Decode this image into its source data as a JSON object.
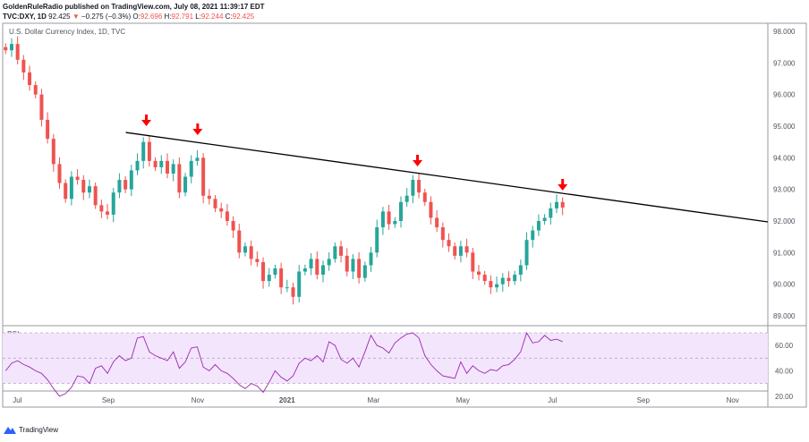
{
  "header": {
    "published": "GoldenRuleRadio published on TradingView.com, July 08, 2021 11:39:17 EDT",
    "symbol": "TVC:DXY, 1D",
    "last": "92.425",
    "change": "−0.275 (−0.3%)",
    "o_label": "O:",
    "o": "92.696",
    "h_label": "H:",
    "h": "92.791",
    "l_label": "L:",
    "l": "92.244",
    "c_label": "C:",
    "c": "92.425"
  },
  "brand": "TradingView",
  "colors": {
    "up": "#26a69a",
    "down": "#ef5350",
    "rsi": "#9c27b0",
    "rsi_band": "#f3e5fc",
    "arrow": "#ff0000",
    "trendline": "#000000"
  },
  "chart_data": [
    {
      "type": "candlestick",
      "title": "U.S. Dollar Currency Index, 1D, TVC",
      "x_range": [
        "2020-06-21",
        "2021-11-25"
      ],
      "x_ticks": [
        "Jul",
        "Sep",
        "Nov",
        "2021",
        "Mar",
        "May",
        "Jul",
        "Sep",
        "Nov"
      ],
      "y_ticks": [
        "98.000",
        "97.000",
        "96.000",
        "95.000",
        "94.000",
        "93.000",
        "92.000",
        "91.000",
        "90.000",
        "89.000"
      ],
      "ylim": [
        88.7,
        98.25
      ],
      "sample_start": "2020-06-23",
      "sample_end": "2021-07-08",
      "closes": [
        97.4,
        97.6,
        97.1,
        96.7,
        96.3,
        96.0,
        95.2,
        94.6,
        93.8,
        93.2,
        92.7,
        93.4,
        93.3,
        92.9,
        93.1,
        92.5,
        92.3,
        92.2,
        92.9,
        93.3,
        93.0,
        93.6,
        93.9,
        94.5,
        93.9,
        93.7,
        93.9,
        93.5,
        93.8,
        92.9,
        93.4,
        93.9,
        94.0,
        92.8,
        92.7,
        92.4,
        92.3,
        92.0,
        91.7,
        91.0,
        91.2,
        90.8,
        90.7,
        90.1,
        90.3,
        90.5,
        89.9,
        89.9,
        89.6,
        90.4,
        90.5,
        90.8,
        90.3,
        90.6,
        90.8,
        91.2,
        90.9,
        90.4,
        90.8,
        90.2,
        90.6,
        91.0,
        91.8,
        92.3,
        91.9,
        92.0,
        92.6,
        92.8,
        93.3,
        92.9,
        92.6,
        92.1,
        91.8,
        91.4,
        91.2,
        90.9,
        91.2,
        91.0,
        90.4,
        90.3,
        90.1,
        89.9,
        90.0,
        90.2,
        90.1,
        90.3,
        90.6,
        91.4,
        91.7,
        92.0,
        92.1,
        92.4,
        92.6,
        92.425
      ],
      "trendline": {
        "start": {
          "date": "2020-09-13",
          "value": 94.8
        },
        "end": {
          "date": "2021-11-25",
          "value": 91.97
        }
      },
      "arrows": [
        {
          "date": "2020-09-27"
        },
        {
          "date": "2020-11-01"
        },
        {
          "date": "2021-03-31"
        },
        {
          "date": "2021-07-08"
        }
      ]
    },
    {
      "type": "line",
      "title": "RSI",
      "y_ticks": [
        "60.00",
        "40.00",
        "20.00"
      ],
      "band": [
        30,
        70
      ],
      "midline": 50,
      "values": [
        40,
        46,
        48,
        45,
        43,
        40,
        38,
        33,
        26,
        20,
        22,
        27,
        36,
        35,
        30,
        42,
        44,
        38,
        47,
        52,
        48,
        50,
        66,
        67,
        55,
        52,
        50,
        48,
        55,
        42,
        47,
        58,
        59,
        43,
        40,
        45,
        40,
        38,
        34,
        29,
        26,
        30,
        28,
        23,
        31,
        40,
        35,
        32,
        36,
        46,
        50,
        48,
        52,
        47,
        63,
        60,
        49,
        46,
        50,
        43,
        55,
        68,
        60,
        58,
        54,
        62,
        66,
        69,
        70,
        66,
        52,
        45,
        40,
        36,
        35,
        34,
        47,
        38,
        44,
        40,
        38,
        41,
        40,
        44,
        45,
        49,
        55,
        70,
        62,
        63,
        68,
        64,
        65,
        63
      ]
    }
  ]
}
